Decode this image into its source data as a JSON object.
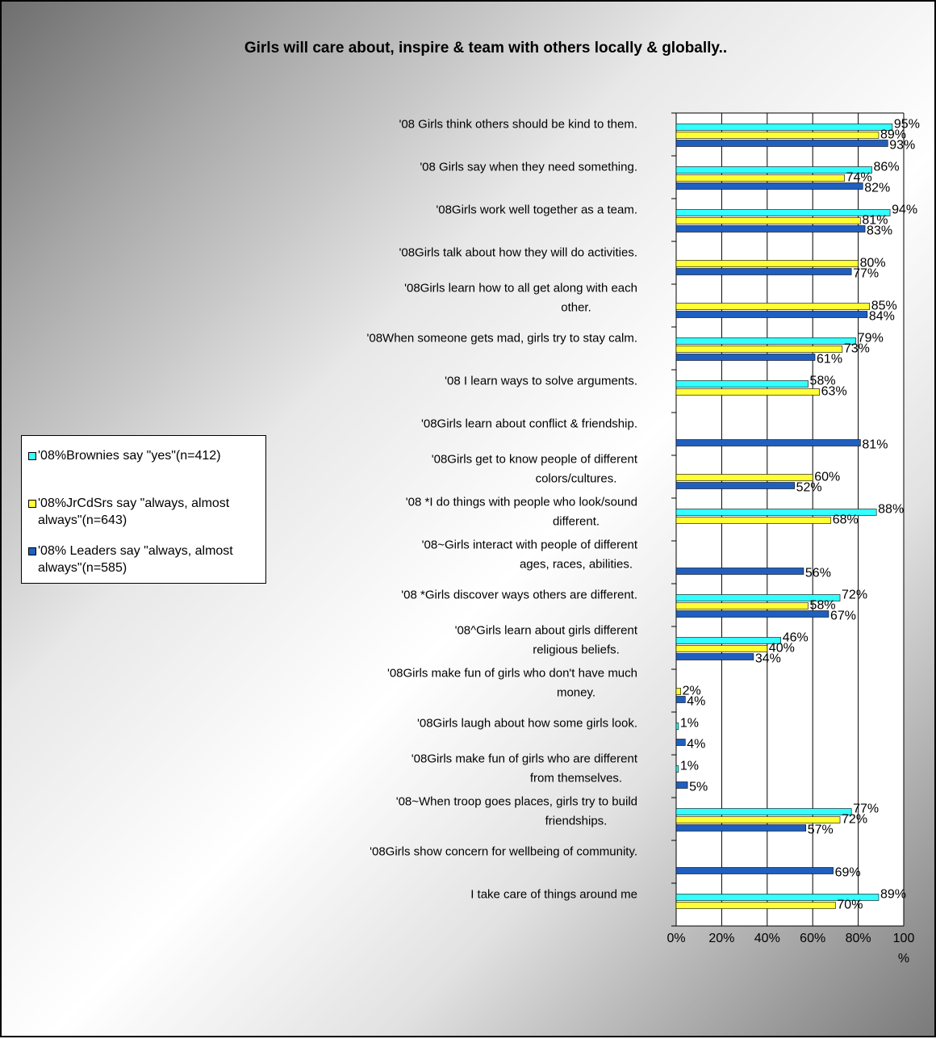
{
  "chart_data": {
    "type": "bar",
    "orientation": "horizontal",
    "title": "Girls will care about, inspire & team with others locally & globally..",
    "categories": [
      "'08 Girls think others should be kind to them.",
      "'08 Girls say when they need something.",
      "'08Girls work well together as a team.",
      "'08Girls talk about how they will do activities.",
      "'08Girls learn how to all get along with each other.",
      "'08When someone gets mad, girls try to stay calm.",
      "'08 I learn ways to solve arguments.",
      "'08Girls learn about conflict & friendship.",
      "'08Girls get to know people of different colors/cultures.",
      "'08 *I do things with people who look/sound different.",
      "'08~Girls interact with people of different ages, races, abilities.",
      "'08 *Girls discover ways others are different.",
      "'08^Girls learn about girls different religious beliefs.",
      "'08Girls make fun of girls who don't have much money.",
      "'08Girls laugh about how some girls look.",
      "'08Girls make fun of girls who are different from themselves.",
      "'08~When troop goes places, girls try to build friendships.",
      "'08Girls show concern for wellbeing of community.",
      "I take care of things around me"
    ],
    "series": [
      {
        "name": "'08%Brownies say \"yes\"(n=412)",
        "color": "#33ffff",
        "values": [
          95,
          86,
          94,
          null,
          null,
          79,
          58,
          null,
          null,
          88,
          null,
          72,
          46,
          null,
          1,
          1,
          77,
          null,
          89
        ]
      },
      {
        "name": "'08%JrCdSrs say \"always, almost always\"(n=643)",
        "color": "#ffff33",
        "values": [
          89,
          74,
          81,
          80,
          85,
          73,
          63,
          null,
          60,
          68,
          null,
          58,
          40,
          2,
          null,
          null,
          72,
          null,
          70
        ]
      },
      {
        "name": "'08% Leaders say \"always, almost always\"(n=585)",
        "color": "#1f5fbf",
        "values": [
          93,
          82,
          83,
          77,
          84,
          61,
          null,
          81,
          52,
          null,
          56,
          67,
          34,
          4,
          4,
          5,
          57,
          69,
          null
        ]
      }
    ],
    "value_format": "{v}%",
    "x_ticks": [
      "0%",
      "20%",
      "40%",
      "60%",
      "80%",
      "100",
      "%"
    ],
    "xlim": [
      0,
      100
    ],
    "grid": true,
    "legend_position": "left"
  }
}
